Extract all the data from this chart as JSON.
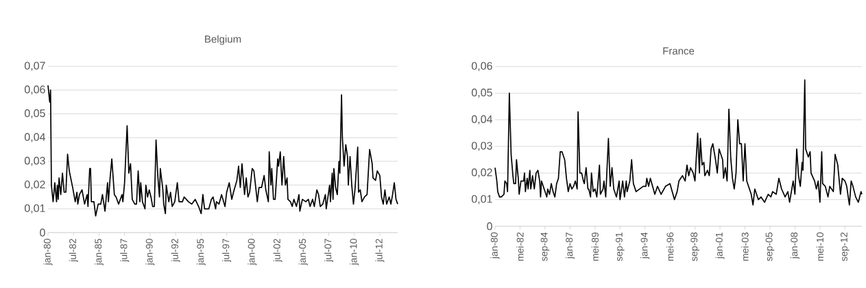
{
  "chart_data": [
    {
      "type": "line",
      "title": "Belgium",
      "grid": "y",
      "xlim": [
        "1980-01",
        "2014-04"
      ],
      "ylim": [
        0,
        0.07
      ],
      "yticks": [
        0,
        {
          "value": 0.01,
          "label": "0,01"
        },
        {
          "value": 0.02,
          "label": "0,02"
        },
        {
          "value": 0.03,
          "label": "0,03"
        },
        {
          "value": 0.04,
          "label": "0,04"
        },
        {
          "value": 0.05,
          "label": "0,05"
        },
        {
          "value": 0.06,
          "label": "0,06"
        },
        {
          "value": 0.07,
          "label": "0,07"
        }
      ],
      "xticks": [
        {
          "value": "1980-01",
          "label": "jan-80"
        },
        {
          "value": "1982-07",
          "label": "jul-82"
        },
        {
          "value": "1985-01",
          "label": "jan-85"
        },
        {
          "value": "1987-07",
          "label": "jul-87"
        },
        {
          "value": "1990-01",
          "label": "jan-90"
        },
        {
          "value": "1992-07",
          "label": "jul-92"
        },
        {
          "value": "1995-01",
          "label": "jan-95"
        },
        {
          "value": "1997-07",
          "label": "jul-97"
        },
        {
          "value": "2000-01",
          "label": "jan-00"
        },
        {
          "value": "2002-07",
          "label": "jul-02"
        },
        {
          "value": "2005-01",
          "label": "jan-05"
        },
        {
          "value": "2007-07",
          "label": "jul-07"
        },
        {
          "value": "2010-01",
          "label": "jan-10"
        },
        {
          "value": "2012-07",
          "label": "jul-12"
        }
      ],
      "x": [
        "1980-01",
        "1980-03",
        "1980-04",
        "1980-05",
        "1980-07",
        "1980-09",
        "1980-11",
        "1980-12",
        "1981-01",
        "1981-02",
        "1981-04",
        "1981-06",
        "1981-08",
        "1981-10",
        "1981-12",
        "1982-02",
        "1982-06",
        "1982-09",
        "1982-11",
        "1982-12",
        "1983-02",
        "1983-05",
        "1983-08",
        "1983-11",
        "1983-12",
        "1984-02",
        "1984-03",
        "1984-04",
        "1984-07",
        "1984-09",
        "1984-12",
        "1985-03",
        "1985-05",
        "1985-08",
        "1985-11",
        "1985-12",
        "1986-02",
        "1986-04",
        "1986-07",
        "1986-09",
        "1986-12",
        "1987-04",
        "1987-05",
        "1987-07",
        "1987-10",
        "1987-12",
        "1988-02",
        "1988-04",
        "1988-07",
        "1988-09",
        "1988-11",
        "1989-01",
        "1989-02",
        "1989-04",
        "1989-07",
        "1989-08",
        "1989-10",
        "1989-12",
        "1990-02",
        "1990-04",
        "1990-06",
        "1990-08",
        "1990-10",
        "1990-12",
        "1991-01",
        "1991-04",
        "1991-05",
        "1991-07",
        "1991-08",
        "1991-11",
        "1992-01",
        "1992-03",
        "1992-06",
        "1992-09",
        "1992-11",
        "1993-03",
        "1993-05",
        "1993-10",
        "1994-02",
        "1994-06",
        "1994-10",
        "1995-01",
        "1995-03",
        "1995-05",
        "1995-10",
        "1996-01",
        "1996-03",
        "1996-06",
        "1996-07",
        "1996-10",
        "1997-01",
        "1997-05",
        "1997-07",
        "1997-10",
        "1998-01",
        "1998-03",
        "1998-07",
        "1998-09",
        "1998-11",
        "1999-01",
        "1999-04",
        "1999-06",
        "1999-08",
        "1999-10",
        "2000-01",
        "2000-03",
        "2000-07",
        "2000-09",
        "2000-12",
        "2001-03",
        "2001-05",
        "2001-08",
        "2001-09",
        "2001-11",
        "2001-12",
        "2002-02",
        "2002-04",
        "2002-07",
        "2002-08",
        "2002-10",
        "2002-12",
        "2003-02",
        "2003-04",
        "2003-06",
        "2003-07",
        "2003-10",
        "2003-12",
        "2004-02",
        "2004-05",
        "2004-08",
        "2004-09",
        "2004-12",
        "2005-04",
        "2005-07",
        "2005-09",
        "2005-12",
        "2006-02",
        "2006-05",
        "2006-07",
        "2006-09",
        "2006-12",
        "2007-03",
        "2007-04",
        "2007-08",
        "2007-09",
        "2007-11",
        "2007-12",
        "2008-01",
        "2008-03",
        "2008-05",
        "2008-07",
        "2008-08",
        "2008-10",
        "2008-11",
        "2009-01",
        "2009-03",
        "2009-05",
        "2009-06",
        "2009-08",
        "2009-10",
        "2009-12",
        "2010-02",
        "2010-05",
        "2010-06",
        "2010-08",
        "2010-10",
        "2011-01",
        "2011-04",
        "2011-07",
        "2011-10",
        "2011-11",
        "2012-02",
        "2012-04",
        "2012-07",
        "2012-09",
        "2012-11",
        "2013-01",
        "2013-03",
        "2013-06",
        "2013-08",
        "2013-10",
        "2013-12",
        "2014-02",
        "2014-04"
      ],
      "series": [
        {
          "color": "#000000",
          "values": [
            0.062,
            0.055,
            0.06,
            0.02,
            0.013,
            0.021,
            0.013,
            0.02,
            0.014,
            0.023,
            0.016,
            0.025,
            0.017,
            0.017,
            0.033,
            0.026,
            0.019,
            0.013,
            0.017,
            0.012,
            0.016,
            0.018,
            0.012,
            0.016,
            0.011,
            0.027,
            0.027,
            0.013,
            0.013,
            0.007,
            0.012,
            0.012,
            0.016,
            0.009,
            0.021,
            0.013,
            0.023,
            0.031,
            0.016,
            0.015,
            0.012,
            0.016,
            0.013,
            0.021,
            0.045,
            0.025,
            0.029,
            0.014,
            0.012,
            0.012,
            0.026,
            0.013,
            0.021,
            0.013,
            0.01,
            0.02,
            0.015,
            0.018,
            0.015,
            0.011,
            0.011,
            0.039,
            0.024,
            0.015,
            0.027,
            0.018,
            0.012,
            0.008,
            0.02,
            0.013,
            0.017,
            0.011,
            0.013,
            0.021,
            0.013,
            0.013,
            0.015,
            0.013,
            0.012,
            0.014,
            0.011,
            0.008,
            0.016,
            0.01,
            0.01,
            0.014,
            0.015,
            0.01,
            0.013,
            0.012,
            0.016,
            0.011,
            0.017,
            0.021,
            0.014,
            0.017,
            0.022,
            0.028,
            0.019,
            0.029,
            0.016,
            0.023,
            0.015,
            0.017,
            0.027,
            0.026,
            0.013,
            0.019,
            0.019,
            0.024,
            0.018,
            0.013,
            0.034,
            0.02,
            0.027,
            0.014,
            0.014,
            0.031,
            0.028,
            0.034,
            0.02,
            0.032,
            0.02,
            0.023,
            0.014,
            0.013,
            0.011,
            0.014,
            0.011,
            0.016,
            0.009,
            0.014,
            0.013,
            0.014,
            0.011,
            0.014,
            0.011,
            0.018,
            0.016,
            0.011,
            0.012,
            0.016,
            0.01,
            0.02,
            0.013,
            0.025,
            0.014,
            0.027,
            0.019,
            0.016,
            0.03,
            0.025,
            0.058,
            0.04,
            0.028,
            0.037,
            0.032,
            0.02,
            0.032,
            0.02,
            0.012,
            0.019,
            0.036,
            0.017,
            0.018,
            0.013,
            0.015,
            0.016,
            0.035,
            0.029,
            0.023,
            0.022,
            0.026,
            0.024,
            0.015,
            0.012,
            0.018,
            0.012,
            0.015,
            0.012,
            0.016,
            0.021,
            0.014,
            0.012
          ]
        }
      ]
    },
    {
      "type": "line",
      "title": "France",
      "grid": "y",
      "xlim": [
        "1980-01",
        "2014-04"
      ],
      "ylim": [
        0,
        0.06
      ],
      "yticks": [
        0,
        {
          "value": 0.01,
          "label": "0,01"
        },
        {
          "value": 0.02,
          "label": "0,02"
        },
        {
          "value": 0.03,
          "label": "0,03"
        },
        {
          "value": 0.04,
          "label": "0,04"
        },
        {
          "value": 0.05,
          "label": "0,05"
        },
        {
          "value": 0.06,
          "label": "0,06"
        }
      ],
      "xticks": [
        {
          "value": "1980-01",
          "label": "jan-80"
        },
        {
          "value": "1982-05",
          "label": "mei-82"
        },
        {
          "value": "1984-09",
          "label": "sep-84"
        },
        {
          "value": "1987-01",
          "label": "jan-87"
        },
        {
          "value": "1989-05",
          "label": "mei-89"
        },
        {
          "value": "1991-09",
          "label": "sep-91"
        },
        {
          "value": "1994-01",
          "label": "jan-94"
        },
        {
          "value": "1996-05",
          "label": "mei-96"
        },
        {
          "value": "1998-09",
          "label": "sep-98"
        },
        {
          "value": "2001-01",
          "label": "jan-01"
        },
        {
          "value": "2003-05",
          "label": "mei-03"
        },
        {
          "value": "2005-09",
          "label": "sep-05"
        },
        {
          "value": "2008-01",
          "label": "jan-08"
        },
        {
          "value": "2010-05",
          "label": "mei-10"
        },
        {
          "value": "2012-09",
          "label": "sep-12"
        }
      ],
      "x": [
        "1980-01",
        "1980-03",
        "1980-04",
        "1980-06",
        "1980-08",
        "1980-11",
        "1980-12",
        "1981-02",
        "1981-03",
        "1981-05",
        "1981-07",
        "1981-09",
        "1981-10",
        "1981-12",
        "1982-01",
        "1982-03",
        "1982-04",
        "1982-06",
        "1982-09",
        "1982-10",
        "1982-11",
        "1983-01",
        "1983-02",
        "1983-04",
        "1983-05",
        "1983-07",
        "1983-09",
        "1983-11",
        "1984-01",
        "1984-03",
        "1984-04",
        "1984-05",
        "1984-08",
        "1984-11",
        "1984-12",
        "1985-02",
        "1985-04",
        "1985-06",
        "1985-08",
        "1985-10",
        "1985-12",
        "1986-02",
        "1986-04",
        "1986-07",
        "1986-09",
        "1986-11",
        "1987-01",
        "1987-03",
        "1987-05",
        "1987-07",
        "1987-09",
        "1987-10",
        "1987-12",
        "1988-02",
        "1988-04",
        "1988-05",
        "1988-07",
        "1988-09",
        "1988-10",
        "1988-12",
        "1989-01",
        "1989-03",
        "1989-05",
        "1989-07",
        "1989-10",
        "1989-11",
        "1990-02",
        "1990-03",
        "1990-05",
        "1990-08",
        "1990-10",
        "1990-12",
        "1991-02",
        "1991-03",
        "1991-05",
        "1991-08",
        "1991-09",
        "1991-12",
        "1992-02",
        "1992-04",
        "1992-05",
        "1992-08",
        "1992-10",
        "1992-12",
        "1993-03",
        "1993-07",
        "1993-11",
        "1994-02",
        "1994-03",
        "1994-05",
        "1994-07",
        "1994-12",
        "1995-03",
        "1995-07",
        "1995-12",
        "1996-05",
        "1996-10",
        "1997-01",
        "1997-03",
        "1997-07",
        "1997-10",
        "1997-12",
        "1998-02",
        "1998-04",
        "1998-07",
        "1998-09",
        "1998-12",
        "1999-02",
        "1999-03",
        "1999-05",
        "1999-07",
        "1999-08",
        "1999-11",
        "2000-01",
        "2000-03",
        "2000-05",
        "2000-08",
        "2000-10",
        "2000-12",
        "2001-02",
        "2001-04",
        "2001-05",
        "2001-07",
        "2001-09",
        "2001-11",
        "2002-01",
        "2002-03",
        "2002-05",
        "2002-07",
        "2002-09",
        "2002-11",
        "2003-01",
        "2003-03",
        "2003-05",
        "2003-07",
        "2003-10",
        "2003-12",
        "2004-02",
        "2004-04",
        "2004-06",
        "2004-08",
        "2004-11",
        "2005-03",
        "2005-07",
        "2005-10",
        "2005-12",
        "2006-04",
        "2006-07",
        "2006-10",
        "2007-02",
        "2007-05",
        "2007-07",
        "2007-11",
        "2008-01",
        "2008-03",
        "2008-05",
        "2008-07",
        "2008-09",
        "2008-10",
        "2008-12",
        "2009-01",
        "2009-04",
        "2009-06",
        "2009-07",
        "2009-11",
        "2010-01",
        "2010-03",
        "2010-05",
        "2010-07",
        "2010-08",
        "2010-11",
        "2011-02",
        "2011-04",
        "2011-08",
        "2011-10",
        "2012-01",
        "2012-04",
        "2012-06",
        "2012-09",
        "2012-11",
        "2013-02",
        "2013-04",
        "2013-06",
        "2013-09",
        "2013-12",
        "2014-03",
        "2014-04"
      ],
      "series": [
        {
          "color": "#000000",
          "values": [
            0.022,
            0.017,
            0.013,
            0.011,
            0.011,
            0.012,
            0.017,
            0.016,
            0.013,
            0.05,
            0.027,
            0.019,
            0.016,
            0.016,
            0.025,
            0.018,
            0.012,
            0.017,
            0.017,
            0.02,
            0.013,
            0.018,
            0.014,
            0.021,
            0.014,
            0.019,
            0.014,
            0.02,
            0.021,
            0.017,
            0.011,
            0.017,
            0.014,
            0.011,
            0.014,
            0.012,
            0.016,
            0.013,
            0.011,
            0.016,
            0.018,
            0.028,
            0.028,
            0.025,
            0.018,
            0.013,
            0.016,
            0.014,
            0.015,
            0.017,
            0.014,
            0.043,
            0.02,
            0.02,
            0.017,
            0.016,
            0.022,
            0.014,
            0.014,
            0.011,
            0.02,
            0.013,
            0.014,
            0.011,
            0.023,
            0.012,
            0.014,
            0.017,
            0.011,
            0.033,
            0.015,
            0.022,
            0.014,
            0.013,
            0.011,
            0.017,
            0.01,
            0.017,
            0.011,
            0.017,
            0.013,
            0.017,
            0.025,
            0.016,
            0.013,
            0.014,
            0.015,
            0.015,
            0.018,
            0.015,
            0.018,
            0.012,
            0.015,
            0.012,
            0.015,
            0.016,
            0.01,
            0.013,
            0.017,
            0.019,
            0.017,
            0.023,
            0.019,
            0.022,
            0.02,
            0.017,
            0.035,
            0.02,
            0.033,
            0.023,
            0.024,
            0.019,
            0.021,
            0.019,
            0.029,
            0.031,
            0.025,
            0.02,
            0.029,
            0.027,
            0.025,
            0.018,
            0.022,
            0.017,
            0.044,
            0.026,
            0.018,
            0.014,
            0.02,
            0.04,
            0.031,
            0.031,
            0.017,
            0.031,
            0.017,
            0.014,
            0.012,
            0.008,
            0.014,
            0.012,
            0.01,
            0.011,
            0.009,
            0.012,
            0.011,
            0.013,
            0.012,
            0.018,
            0.014,
            0.011,
            0.013,
            0.009,
            0.017,
            0.012,
            0.029,
            0.019,
            0.015,
            0.024,
            0.021,
            0.055,
            0.029,
            0.026,
            0.028,
            0.02,
            0.017,
            0.014,
            0.017,
            0.009,
            0.028,
            0.016,
            0.015,
            0.011,
            0.015,
            0.013,
            0.027,
            0.023,
            0.012,
            0.018,
            0.017,
            0.015,
            0.008,
            0.017,
            0.015,
            0.011,
            0.009,
            0.013,
            0.012
          ]
        }
      ]
    }
  ]
}
